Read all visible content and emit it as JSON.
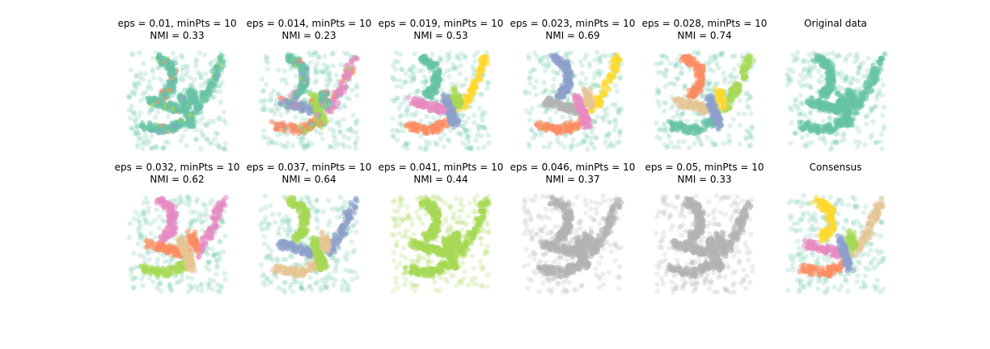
{
  "chart_data": [
    {
      "type": "scatter",
      "title_line1": "eps = 0.01, minPts = 10",
      "title_line2": "NMI = 0.33",
      "palette": [
        "#66c2a5",
        "#fc8d62",
        "#a6d854",
        "#8da0cb"
      ],
      "mode": "mostly-one"
    },
    {
      "type": "scatter",
      "title_line1": "eps = 0.014, minPts = 10",
      "title_line2": "NMI = 0.23",
      "palette": [
        "#66c2a5",
        "#8da0cb",
        "#fc8d62",
        "#a6d854",
        "#e78ac3"
      ],
      "mode": "few"
    },
    {
      "type": "scatter",
      "title_line1": "eps = 0.019, minPts = 10",
      "title_line2": "NMI = 0.53",
      "palette": [
        "#66c2a5",
        "#e78ac3",
        "#fc8d62",
        "#8da0cb",
        "#ffd92f",
        "#a6d854"
      ],
      "mode": "many"
    },
    {
      "type": "scatter",
      "title_line1": "eps = 0.023, minPts = 10",
      "title_line2": "NMI = 0.69",
      "palette": [
        "#8da0cb",
        "#b3b3b3",
        "#fc8d62",
        "#e78ac3",
        "#ffd92f",
        "#e5c494",
        "#66c2a5"
      ],
      "mode": "many"
    },
    {
      "type": "scatter",
      "title_line1": "eps = 0.028, minPts = 10",
      "title_line2": "NMI = 0.74",
      "palette": [
        "#fc8d62",
        "#e5c494",
        "#66c2a5",
        "#8da0cb",
        "#a6d854",
        "#ffd92f"
      ],
      "mode": "many"
    },
    {
      "type": "scatter",
      "title_line1": "Original data",
      "title_line2": "",
      "palette": [
        "#66c2a5"
      ],
      "mode": "single"
    },
    {
      "type": "scatter",
      "title_line1": "eps = 0.032, minPts = 10",
      "title_line2": "NMI = 0.62",
      "palette": [
        "#e78ac3",
        "#fc8d62",
        "#a6d854",
        "#e5c494"
      ],
      "mode": "many"
    },
    {
      "type": "scatter",
      "title_line1": "eps = 0.037, minPts = 10",
      "title_line2": "NMI = 0.64",
      "palette": [
        "#a6d854",
        "#8da0cb",
        "#e5c494"
      ],
      "mode": "many"
    },
    {
      "type": "scatter",
      "title_line1": "eps = 0.041, minPts = 10",
      "title_line2": "NMI = 0.44",
      "palette": [
        "#a6d854"
      ],
      "mode": "single"
    },
    {
      "type": "scatter",
      "title_line1": "eps = 0.046, minPts = 10",
      "title_line2": "NMI = 0.37",
      "palette": [
        "#b3b3b3"
      ],
      "mode": "single"
    },
    {
      "type": "scatter",
      "title_line1": "eps = 0.05, minPts = 10",
      "title_line2": "NMI = 0.33",
      "palette": [
        "#b3b3b3"
      ],
      "mode": "single"
    },
    {
      "type": "scatter",
      "title_line1": "Consensus",
      "title_line2": "",
      "palette": [
        "#ffd92f",
        "#e78ac3",
        "#fc8d62",
        "#8da0cb",
        "#e5c494",
        "#a6d854"
      ],
      "mode": "many"
    }
  ],
  "noise_color": "#66c2a5"
}
